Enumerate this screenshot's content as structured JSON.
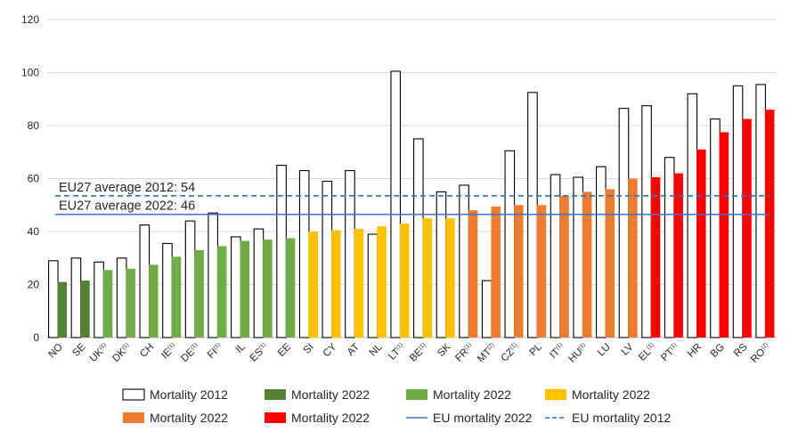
{
  "chart_data": {
    "type": "bar",
    "categories": [
      {
        "code": "NO",
        "sup": ""
      },
      {
        "code": "SE",
        "sup": ""
      },
      {
        "code": "UK",
        "sup": "(1)"
      },
      {
        "code": "DK",
        "sup": "(1)"
      },
      {
        "code": "CH",
        "sup": ""
      },
      {
        "code": "IE",
        "sup": "(1)"
      },
      {
        "code": "DE",
        "sup": "(1)"
      },
      {
        "code": "FI",
        "sup": "(1)"
      },
      {
        "code": "IL",
        "sup": ""
      },
      {
        "code": "ES",
        "sup": "(1)"
      },
      {
        "code": "EE",
        "sup": ""
      },
      {
        "code": "SI",
        "sup": ""
      },
      {
        "code": "CY",
        "sup": ""
      },
      {
        "code": "AT",
        "sup": ""
      },
      {
        "code": "NL",
        "sup": ""
      },
      {
        "code": "LT",
        "sup": "(1)"
      },
      {
        "code": "BE",
        "sup": "(1)"
      },
      {
        "code": "SK",
        "sup": ""
      },
      {
        "code": "FR",
        "sup": "(1)"
      },
      {
        "code": "MT",
        "sup": "(2)"
      },
      {
        "code": "CZ",
        "sup": "(1)"
      },
      {
        "code": "PL",
        "sup": ""
      },
      {
        "code": "IT",
        "sup": "(1)"
      },
      {
        "code": "HU",
        "sup": "(1)"
      },
      {
        "code": "LU",
        "sup": ""
      },
      {
        "code": "LV",
        "sup": ""
      },
      {
        "code": "EL",
        "sup": "(1)"
      },
      {
        "code": "PT",
        "sup": "(1)"
      },
      {
        "code": "HR",
        "sup": ""
      },
      {
        "code": "BG",
        "sup": ""
      },
      {
        "code": "RS",
        "sup": ""
      },
      {
        "code": "RO",
        "sup": "(2)"
      }
    ],
    "series": [
      {
        "name": "Mortality 2012",
        "style": "outline",
        "color": "#000000",
        "values": [
          29,
          30,
          28.5,
          30,
          42.5,
          35.5,
          44,
          47,
          38,
          41,
          65,
          63,
          59,
          63,
          39,
          100.5,
          75,
          55,
          57.5,
          21.5,
          70.5,
          92.5,
          61.5,
          60.5,
          64.5,
          86.5,
          87.5,
          68,
          92,
          82.5,
          95,
          95.5
        ]
      },
      {
        "name": "Mortality 2022",
        "style": "filled",
        "values": [
          21,
          21.5,
          25.5,
          26,
          27.5,
          30.5,
          33,
          34.5,
          36.5,
          37,
          37.5,
          40,
          40.5,
          41,
          42,
          43,
          45,
          45,
          48,
          49.5,
          50,
          50,
          53.5,
          55,
          56,
          60,
          60.5,
          62,
          71,
          77.5,
          82.5,
          86
        ],
        "groups": [
          "dark-green",
          "dark-green",
          "green",
          "green",
          "green",
          "green",
          "green",
          "green",
          "green",
          "green",
          "green",
          "yellow",
          "yellow",
          "yellow",
          "yellow",
          "yellow",
          "yellow",
          "yellow",
          "orange",
          "orange",
          "orange",
          "orange",
          "orange",
          "orange",
          "orange",
          "orange",
          "red",
          "red",
          "red",
          "red",
          "red",
          "red"
        ]
      }
    ],
    "group_colors": {
      "dark-green": "#548235",
      "green": "#70ad47",
      "yellow": "#ffc000",
      "orange": "#ed7d31",
      "red": "#ff0000"
    },
    "reference_lines": [
      {
        "name": "EU mortality 2012",
        "value": 53.5,
        "style": "dashed",
        "color": "#2e75b6",
        "label": "EU27 average 2012: 54"
      },
      {
        "name": "EU mortality 2022",
        "value": 46.5,
        "style": "solid",
        "color": "#4472c4",
        "label": "EU27 average 2022: 46"
      }
    ],
    "ylim": [
      0,
      120
    ],
    "yticks": [
      0,
      20,
      40,
      60,
      80,
      100,
      120
    ],
    "grid": true,
    "legend": {
      "placement": "bottom",
      "entries": [
        {
          "label": "Mortality 2012",
          "kind": "outline-box",
          "color": "#000000"
        },
        {
          "label": "Mortality 2022",
          "kind": "box",
          "color": "#548235"
        },
        {
          "label": "Mortality 2022",
          "kind": "box",
          "color": "#70ad47"
        },
        {
          "label": "Mortality 2022",
          "kind": "box",
          "color": "#ffc000"
        },
        {
          "label": "Mortality 2022",
          "kind": "box",
          "color": "#ed7d31"
        },
        {
          "label": "Mortality 2022",
          "kind": "box",
          "color": "#ff0000"
        },
        {
          "label": "EU mortality 2022",
          "kind": "solid-line",
          "color": "#4472c4"
        },
        {
          "label": "EU mortality 2012",
          "kind": "dashed-line",
          "color": "#2e75b6"
        }
      ]
    }
  }
}
